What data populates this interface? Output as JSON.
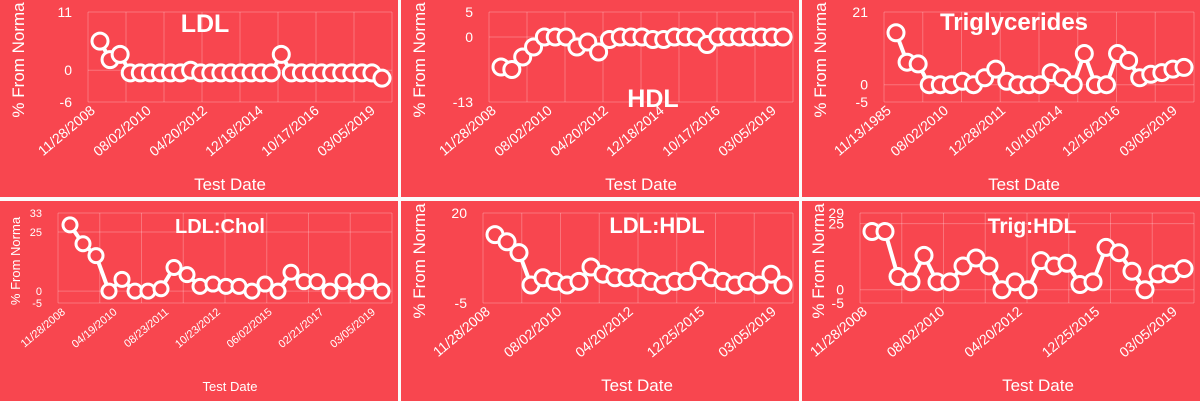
{
  "chart_data": [
    {
      "type": "line",
      "title": "LDL",
      "ylabel": "% From Norma",
      "xlabel": "Test Date",
      "ylim": [
        -6,
        11
      ],
      "yticks": [
        11,
        0,
        -6
      ],
      "xticks": [
        "11/28/2008",
        "08/02/2010",
        "04/20/2012",
        "12/18/2014",
        "10/17/2016",
        "03/05/2019"
      ],
      "values": [
        5.5,
        2,
        3,
        -0.5,
        -0.5,
        -0.5,
        -0.5,
        -0.5,
        -0.5,
        0,
        -0.5,
        -0.5,
        -0.5,
        -0.5,
        -0.5,
        -0.5,
        -0.5,
        -0.5,
        3,
        -0.5,
        -0.5,
        -0.5,
        -0.5,
        -0.5,
        -0.5,
        -0.5,
        -0.5,
        -0.5,
        -1.5
      ]
    },
    {
      "type": "line",
      "title": "HDL",
      "ylabel": "% From Norma",
      "xlabel": "Test Date",
      "ylim": [
        -13,
        5
      ],
      "yticks": [
        5,
        0,
        -13
      ],
      "xticks": [
        "11/28/2008",
        "08/02/2010",
        "04/20/2012",
        "12/18/2014",
        "10/17/2016",
        "03/05/2019"
      ],
      "values": [
        -6,
        -6.5,
        -4,
        -2,
        0,
        0,
        0,
        -2,
        -1,
        -3,
        -0.5,
        0,
        0,
        0,
        -0.5,
        -0.5,
        0,
        0,
        0,
        -1.5,
        0,
        0,
        0,
        0,
        0,
        0,
        0
      ]
    },
    {
      "type": "line",
      "title": "Triglycerides",
      "ylabel": "% From Norma",
      "xlabel": "Test Date",
      "ylim": [
        -5,
        21
      ],
      "yticks": [
        21,
        0,
        -5
      ],
      "xticks": [
        "11/13/1985",
        "08/02/2010",
        "12/28/2011",
        "10/10/2014",
        "12/16/2016",
        "03/05/2019"
      ],
      "values": [
        15,
        6.5,
        6,
        0,
        0,
        0,
        1,
        0,
        2,
        4.5,
        1,
        0,
        0,
        0,
        3.5,
        2,
        0,
        9,
        0,
        0,
        9,
        7,
        2,
        3,
        3.5,
        4.5,
        5
      ]
    },
    {
      "type": "line",
      "title": "LDL:Chol",
      "ylabel": "% From Norma",
      "xlabel": "Test Date",
      "ylim": [
        -5,
        33
      ],
      "yticks": [
        33,
        25,
        0,
        -5
      ],
      "xticks": [
        "11/28/2008",
        "04/19/2010",
        "08/23/2011",
        "10/23/2012",
        "06/02/2015",
        "02/21/2017",
        "03/05/2019"
      ],
      "values": [
        28,
        20,
        15,
        0,
        5,
        0,
        0,
        1,
        10,
        7,
        2,
        3,
        2,
        2,
        0,
        3,
        0,
        8,
        4,
        4,
        0,
        4,
        0,
        4,
        0
      ]
    },
    {
      "type": "line",
      "title": "LDL:HDL",
      "ylabel": "% From Norma",
      "xlabel": "Test Date",
      "ylim": [
        -5,
        20
      ],
      "yticks": [
        20,
        -5
      ],
      "xticks": [
        "11/28/2008",
        "08/02/2010",
        "04/20/2012",
        "12/25/2015",
        "03/05/2019"
      ],
      "values": [
        14,
        12,
        9,
        0,
        2,
        1,
        0,
        1,
        5,
        3,
        2,
        2,
        2,
        1,
        0,
        1,
        1,
        4,
        2,
        1,
        0,
        1,
        0,
        3,
        0
      ]
    },
    {
      "type": "line",
      "title": "Trig:HDL",
      "ylabel": "% From Norma",
      "xlabel": "Test Date",
      "ylim": [
        -5,
        29
      ],
      "yticks": [
        29,
        25,
        0,
        -5
      ],
      "xticks": [
        "11/28/2008",
        "08/02/2010",
        "04/20/2012",
        "12/25/2015",
        "03/05/2019"
      ],
      "values": [
        22,
        22,
        5,
        3,
        13,
        3,
        3,
        9,
        12,
        9,
        0,
        3,
        0,
        11,
        9,
        10,
        2,
        3,
        16,
        14,
        7,
        0,
        6,
        6,
        8
      ]
    }
  ]
}
